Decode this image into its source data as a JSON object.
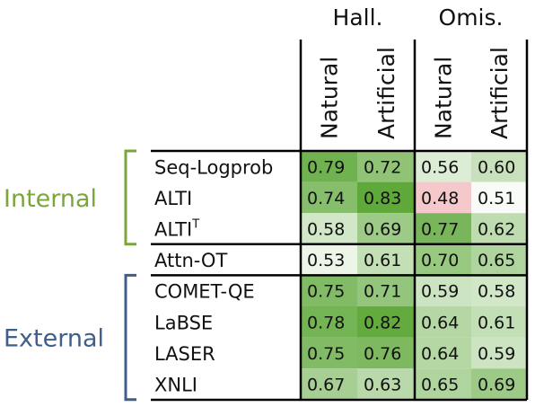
{
  "chart_data": {
    "type": "heatmap",
    "column_groups": [
      {
        "label": "Hall.",
        "columns": [
          "Natural",
          "Artificial"
        ]
      },
      {
        "label": "Omis.",
        "columns": [
          "Natural",
          "Artificial"
        ]
      }
    ],
    "row_groups": [
      {
        "label": "Internal",
        "color": "#7aa63c",
        "rows": [
          "Seq-Logprob",
          "ALTI",
          "ALTI"
        ]
      },
      {
        "label": "",
        "color": "",
        "rows": [
          "Attn-OT"
        ]
      },
      {
        "label": "External",
        "color": "#3d5f8a",
        "rows": [
          "COMET-QE",
          "LaBSE",
          "LASER",
          "XNLI"
        ]
      }
    ],
    "row_label_superscripts": {
      "2": "T"
    },
    "values": [
      [
        0.79,
        0.72,
        0.56,
        0.6
      ],
      [
        0.74,
        0.83,
        0.48,
        0.51
      ],
      [
        0.58,
        0.69,
        0.77,
        0.62
      ],
      [
        0.53,
        0.61,
        0.7,
        0.65
      ],
      [
        0.75,
        0.71,
        0.59,
        0.58
      ],
      [
        0.78,
        0.82,
        0.64,
        0.61
      ],
      [
        0.75,
        0.76,
        0.64,
        0.59
      ],
      [
        0.67,
        0.63,
        0.65,
        0.69
      ]
    ],
    "color_scale": {
      "min": 0.48,
      "center": 0.5,
      "max": 0.83,
      "low_color": "#f5c9cb",
      "mid_color": "#ffffff",
      "high_color": "#5fa83a"
    }
  }
}
